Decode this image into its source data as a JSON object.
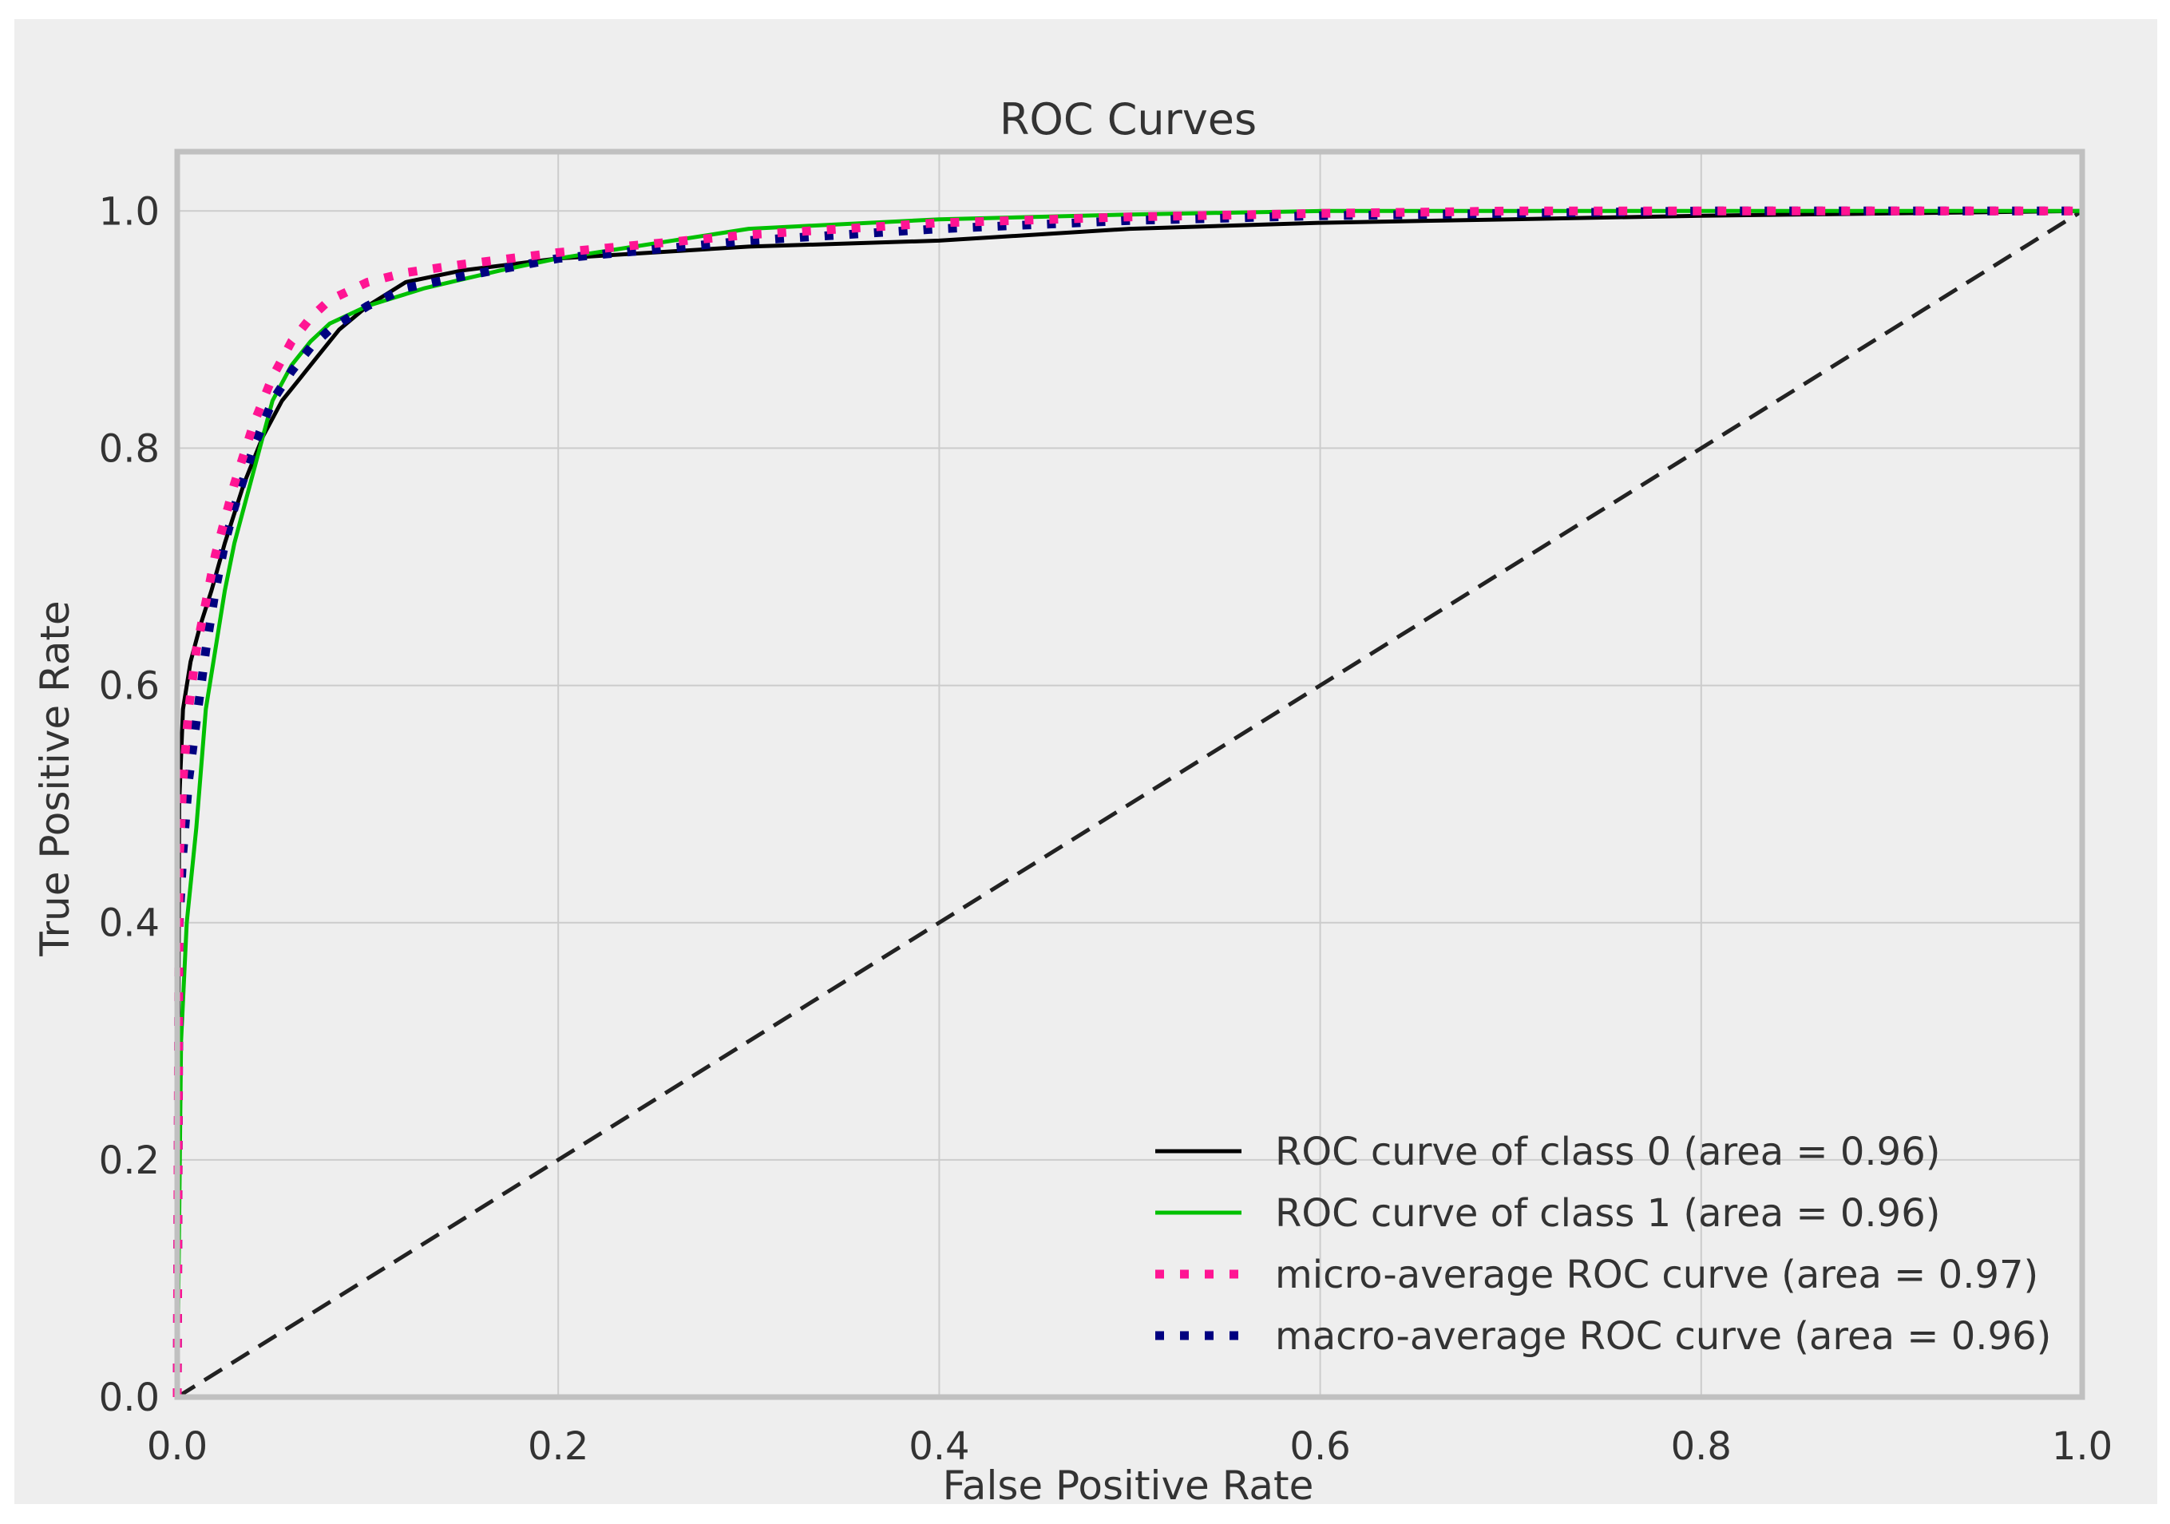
{
  "chart_data": {
    "type": "line",
    "title": "ROC Curves",
    "xlabel": "False Positive Rate",
    "ylabel": "True Positive Rate",
    "xlim": [
      0.0,
      1.0
    ],
    "ylim": [
      0.0,
      1.05
    ],
    "grid": true,
    "legend_position": "lower-right",
    "x_ticks": [
      0.0,
      0.2,
      0.4,
      0.6,
      0.8,
      1.0
    ],
    "x_tick_labels": [
      "0.0",
      "0.2",
      "0.4",
      "0.6",
      "0.8",
      "1.0"
    ],
    "y_ticks": [
      0.0,
      0.2,
      0.4,
      0.6,
      0.8,
      1.0
    ],
    "y_tick_labels": [
      "0.0",
      "0.2",
      "0.4",
      "0.6",
      "0.8",
      "1.0"
    ],
    "series": [
      {
        "name": "ROC curve of class 0 (area = 0.96)",
        "color": "#000000",
        "style": "solid",
        "x": [
          0.0,
          0.001,
          0.003,
          0.007,
          0.012,
          0.018,
          0.025,
          0.035,
          0.045,
          0.055,
          0.065,
          0.075,
          0.085,
          0.1,
          0.12,
          0.15,
          0.2,
          0.3,
          0.4,
          0.5,
          0.6,
          0.7,
          0.8,
          0.9,
          1.0
        ],
        "y": [
          0.0,
          0.5,
          0.58,
          0.62,
          0.65,
          0.68,
          0.72,
          0.77,
          0.81,
          0.84,
          0.86,
          0.88,
          0.9,
          0.92,
          0.94,
          0.95,
          0.96,
          0.97,
          0.975,
          0.985,
          0.99,
          0.993,
          0.996,
          0.998,
          1.0
        ]
      },
      {
        "name": "ROC curve of class 1 (area = 0.96)",
        "color": "#00c000",
        "style": "solid",
        "x": [
          0.0,
          0.002,
          0.005,
          0.01,
          0.015,
          0.02,
          0.025,
          0.03,
          0.04,
          0.05,
          0.06,
          0.07,
          0.08,
          0.1,
          0.13,
          0.17,
          0.2,
          0.3,
          0.4,
          0.5,
          0.6,
          0.7,
          0.8,
          0.9,
          1.0
        ],
        "y": [
          0.0,
          0.3,
          0.4,
          0.48,
          0.58,
          0.63,
          0.68,
          0.72,
          0.78,
          0.84,
          0.87,
          0.89,
          0.905,
          0.92,
          0.935,
          0.95,
          0.96,
          0.985,
          0.993,
          0.997,
          1.0,
          1.0,
          1.0,
          1.0,
          1.0
        ]
      },
      {
        "name": "micro-average ROC curve (area = 0.97)",
        "color": "#ff1493",
        "style": "dotted",
        "x": [
          0.0,
          0.001,
          0.003,
          0.006,
          0.01,
          0.015,
          0.02,
          0.025,
          0.03,
          0.04,
          0.05,
          0.06,
          0.07,
          0.08,
          0.1,
          0.12,
          0.15,
          0.2,
          0.3,
          0.4,
          0.5,
          0.6,
          0.7,
          0.8,
          1.0
        ],
        "y": [
          0.0,
          0.45,
          0.52,
          0.58,
          0.63,
          0.67,
          0.71,
          0.74,
          0.77,
          0.82,
          0.86,
          0.89,
          0.91,
          0.925,
          0.94,
          0.948,
          0.955,
          0.965,
          0.98,
          0.99,
          0.995,
          0.998,
          1.0,
          1.0,
          1.0
        ]
      },
      {
        "name": "macro-average ROC curve (area = 0.96)",
        "color": "#000080",
        "style": "dotted",
        "x": [
          0.0,
          0.001,
          0.003,
          0.006,
          0.01,
          0.015,
          0.02,
          0.025,
          0.03,
          0.04,
          0.05,
          0.06,
          0.07,
          0.08,
          0.1,
          0.12,
          0.15,
          0.2,
          0.3,
          0.4,
          0.5,
          0.6,
          0.7,
          0.8,
          1.0
        ],
        "y": [
          0.0,
          0.4,
          0.46,
          0.52,
          0.57,
          0.63,
          0.68,
          0.72,
          0.75,
          0.8,
          0.84,
          0.865,
          0.885,
          0.9,
          0.92,
          0.935,
          0.945,
          0.96,
          0.975,
          0.985,
          0.992,
          0.996,
          0.998,
          1.0,
          1.0
        ]
      },
      {
        "name": "chance",
        "color": "#222222",
        "style": "dashed",
        "x": [
          0.0,
          1.0
        ],
        "y": [
          0.0,
          1.0
        ]
      }
    ],
    "legend": [
      "ROC curve of class 0 (area = 0.96)",
      "ROC curve of class 1 (area = 0.96)",
      "micro-average ROC curve (area = 0.97)",
      "macro-average ROC curve (area = 0.96)"
    ]
  }
}
